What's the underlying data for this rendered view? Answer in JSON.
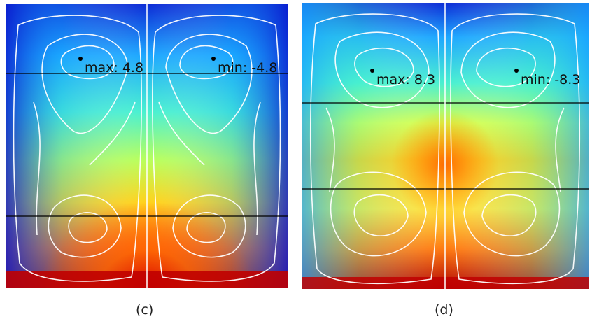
{
  "panels": [
    {
      "id": "c",
      "caption": "(c)",
      "max_label": "max: 4.8",
      "min_label": "min: -4.8"
    },
    {
      "id": "d",
      "caption": "(d)",
      "max_label": "max: 8.3",
      "min_label": "min: -8.3"
    }
  ],
  "colors": {
    "hot": "#c40000",
    "warm": "#ffd400",
    "mid": "#36e0d0",
    "cold": "#0a1ccf",
    "streamline": "#ffffff"
  }
}
